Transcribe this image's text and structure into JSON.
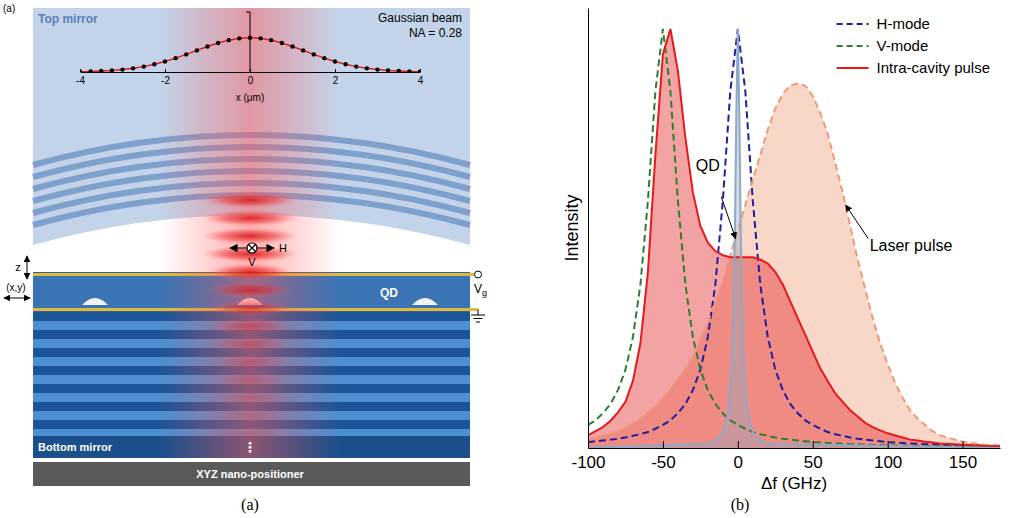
{
  "chart_data": [
    {
      "type": "line",
      "title": "Gaussian beam",
      "annotations": [
        "NA = 0.28"
      ],
      "xlabel": "x (μm)",
      "x": [
        -4,
        -3.75,
        -3.5,
        -3.25,
        -3,
        -2.75,
        -2.5,
        -2.25,
        -2,
        -1.75,
        -1.5,
        -1.25,
        -1,
        -0.75,
        -0.5,
        -0.25,
        0,
        0.25,
        0.5,
        0.75,
        1,
        1.25,
        1.5,
        1.75,
        2,
        2.25,
        2.5,
        2.75,
        3,
        3.25,
        3.5,
        3.75,
        4
      ],
      "series": [
        {
          "type": "line",
          "color": "#e41a1c",
          "line_style": "solid",
          "values": [
            0.009,
            0.016,
            0.027,
            0.044,
            0.07,
            0.107,
            0.157,
            0.224,
            0.306,
            0.404,
            0.514,
            0.63,
            0.744,
            0.847,
            0.929,
            0.982,
            1,
            0.982,
            0.929,
            0.847,
            0.744,
            0.63,
            0.514,
            0.404,
            0.306,
            0.224,
            0.157,
            0.107,
            0.07,
            0.044,
            0.027,
            0.016,
            0.009
          ]
        },
        {
          "type": "scatter",
          "color": "#000000",
          "marker": "circle",
          "values": [
            0.009,
            0.016,
            0.027,
            0.044,
            0.07,
            0.107,
            0.157,
            0.224,
            0.306,
            0.404,
            0.514,
            0.63,
            0.744,
            0.847,
            0.929,
            0.982,
            1,
            0.982,
            0.929,
            0.847,
            0.744,
            0.63,
            0.514,
            0.404,
            0.306,
            0.224,
            0.157,
            0.107,
            0.07,
            0.044,
            0.027,
            0.016,
            0.009
          ]
        }
      ],
      "xlim": [
        -4,
        4
      ],
      "xticks": [
        -4,
        -2,
        0,
        2,
        4
      ],
      "ylim": [
        0,
        1.75
      ],
      "tick_labels": "x"
    },
    {
      "type": "line",
      "xlabel": "Δf (GHz)",
      "ylabel": "Intensity",
      "annotations": [
        "QD",
        "Laser pulse"
      ],
      "series": [
        {
          "type": "area",
          "color": "#ee9a78",
          "line_style": "dashed",
          "x": [
            -100,
            -95,
            -90,
            -85,
            -80,
            -75,
            -70,
            -65,
            -60,
            -55,
            -50,
            -45,
            -40,
            -35,
            -30,
            -25,
            -20,
            -15,
            -10,
            -5,
            0,
            5,
            10,
            15,
            20,
            25,
            30,
            35,
            40,
            45,
            50,
            55,
            60,
            65,
            70,
            75,
            80,
            85,
            90,
            95,
            100,
            105,
            110,
            115,
            120,
            125,
            130,
            135,
            140,
            145,
            150,
            155,
            160,
            165,
            170,
            175
          ],
          "values": [
            0.02,
            0.025,
            0.03,
            0.035,
            0.04,
            0.05,
            0.06,
            0.07,
            0.085,
            0.1,
            0.12,
            0.14,
            0.165,
            0.19,
            0.22,
            0.26,
            0.3,
            0.35,
            0.4,
            0.46,
            0.52,
            0.58,
            0.64,
            0.7,
            0.76,
            0.81,
            0.845,
            0.865,
            0.87,
            0.865,
            0.84,
            0.8,
            0.75,
            0.68,
            0.61,
            0.53,
            0.45,
            0.38,
            0.31,
            0.25,
            0.2,
            0.155,
            0.12,
            0.09,
            0.07,
            0.055,
            0.04,
            0.03,
            0.025,
            0.02,
            0.015,
            0.012,
            0.01,
            0.008,
            0.007,
            0.006
          ]
        },
        {
          "name": "H-mode",
          "type": "line",
          "color": "#1f1f9e",
          "line_style": "dashed",
          "x": [
            -100,
            -95,
            -90,
            -85,
            -80,
            -75,
            -70,
            -65,
            -60,
            -55,
            -50,
            -45,
            -40,
            -35,
            -30,
            -25,
            -20,
            -15,
            -10,
            -5,
            0,
            5,
            10,
            15,
            20,
            25,
            30,
            35,
            40,
            45,
            50,
            55,
            60,
            65,
            70,
            75,
            80,
            85,
            90,
            95,
            100,
            105,
            110,
            115,
            120,
            125,
            130,
            135,
            140,
            145,
            150,
            155,
            160,
            165,
            170,
            175
          ],
          "values": [
            0.014,
            0.016,
            0.018,
            0.02,
            0.022,
            0.025,
            0.029,
            0.033,
            0.038,
            0.046,
            0.055,
            0.066,
            0.083,
            0.105,
            0.138,
            0.187,
            0.265,
            0.39,
            0.59,
            0.852,
            1,
            0.852,
            0.59,
            0.39,
            0.265,
            0.187,
            0.138,
            0.105,
            0.083,
            0.066,
            0.055,
            0.046,
            0.038,
            0.033,
            0.029,
            0.025,
            0.022,
            0.02,
            0.018,
            0.016,
            0.014,
            0.013,
            0.012,
            0.011,
            0.01,
            0.009,
            0.009,
            0.008,
            0.007,
            0.007,
            0.006,
            0.006,
            0.006,
            0.005,
            0.005,
            0.005
          ]
        },
        {
          "name": "V-mode",
          "type": "line",
          "color": "#2e7d32",
          "line_style": "dashed",
          "x": [
            -100,
            -95,
            -90,
            -85,
            -80,
            -75,
            -70,
            -65,
            -60,
            -55,
            -50,
            -45,
            -40,
            -35,
            -30,
            -25,
            -20,
            -15,
            -10,
            -5,
            0,
            5,
            10,
            15,
            20,
            25,
            30,
            35,
            40,
            45,
            50,
            55,
            60,
            65,
            70,
            75,
            80,
            85,
            90,
            95,
            100,
            105,
            110,
            115,
            120,
            125,
            130,
            135,
            140,
            145,
            150,
            155,
            160,
            165,
            170,
            175
          ],
          "values": [
            0.055,
            0.066,
            0.083,
            0.105,
            0.138,
            0.187,
            0.265,
            0.39,
            0.59,
            0.852,
            1,
            0.852,
            0.59,
            0.39,
            0.265,
            0.187,
            0.138,
            0.105,
            0.083,
            0.066,
            0.055,
            0.046,
            0.038,
            0.033,
            0.029,
            0.025,
            0.022,
            0.02,
            0.018,
            0.016,
            0.014,
            0.013,
            0.012,
            0.011,
            0.01,
            0.009,
            0.009,
            0.008,
            0.007,
            0.007,
            0.006,
            0.006,
            0.006,
            0.005,
            0.005,
            0.005,
            0.004,
            0.004,
            0.004,
            0.004,
            0.004,
            0.003,
            0.003,
            0.003,
            0.003,
            0.003
          ]
        },
        {
          "name": "Intra-cavity pulse",
          "type": "area",
          "color": "#e41a1c",
          "line_style": "solid",
          "x": [
            -100,
            -95,
            -90,
            -85,
            -80,
            -75,
            -70,
            -65,
            -60,
            -55,
            -50,
            -45,
            -40,
            -35,
            -30,
            -25,
            -20,
            -15,
            -10,
            -5,
            0,
            5,
            10,
            15,
            20,
            25,
            30,
            35,
            40,
            45,
            50,
            55,
            60,
            65,
            70,
            75,
            80,
            85,
            90,
            95,
            100,
            105,
            110,
            115,
            120,
            125,
            130,
            135,
            140,
            145,
            150,
            155,
            160,
            165,
            170,
            175
          ],
          "values": [
            0.03,
            0.04,
            0.05,
            0.065,
            0.085,
            0.11,
            0.16,
            0.25,
            0.42,
            0.7,
            0.94,
            1,
            0.9,
            0.74,
            0.61,
            0.53,
            0.49,
            0.47,
            0.46,
            0.455,
            0.455,
            0.455,
            0.455,
            0.45,
            0.44,
            0.42,
            0.39,
            0.35,
            0.31,
            0.27,
            0.23,
            0.19,
            0.16,
            0.13,
            0.11,
            0.09,
            0.075,
            0.06,
            0.05,
            0.042,
            0.035,
            0.03,
            0.025,
            0.02,
            0.018,
            0.015,
            0.013,
            0.011,
            0.01,
            0.009,
            0.008,
            0.007,
            0.006,
            0.005,
            0.005,
            0.004
          ]
        },
        {
          "type": "area",
          "color": "#8fa8c4",
          "line_style": "solid",
          "x": [
            -100,
            -20,
            -15,
            -10,
            -8,
            -6,
            -4,
            -3,
            -2,
            -1,
            0,
            1,
            2,
            3,
            4,
            6,
            8,
            10,
            15,
            20,
            175
          ],
          "values": [
            0.0004,
            0.01,
            0.017,
            0.038,
            0.059,
            0.1,
            0.2,
            0.308,
            0.5,
            0.8,
            1,
            0.8,
            0.5,
            0.308,
            0.2,
            0.1,
            0.059,
            0.038,
            0.017,
            0.01,
            0.0001
          ]
        }
      ],
      "xlim": [
        -100,
        175
      ],
      "xticks": [
        -100,
        -50,
        0,
        50,
        100,
        150
      ],
      "ylim": [
        0,
        1.05
      ],
      "tick_labels": "x",
      "legend": "top-right"
    }
  ],
  "diagram": {
    "panel_label": "(a)",
    "top_mirror": "Top mirror",
    "polarization": [
      "H",
      "V"
    ],
    "axis_z": "z",
    "axis_xy": "(x,y)",
    "qd": "QD",
    "gate": [
      "V",
      "g"
    ],
    "bottom_mirror": "Bottom mirror",
    "more_layers": "⋮",
    "positioner": "XYZ nano-positioner"
  },
  "captions": [
    "(a)",
    "(b)"
  ]
}
